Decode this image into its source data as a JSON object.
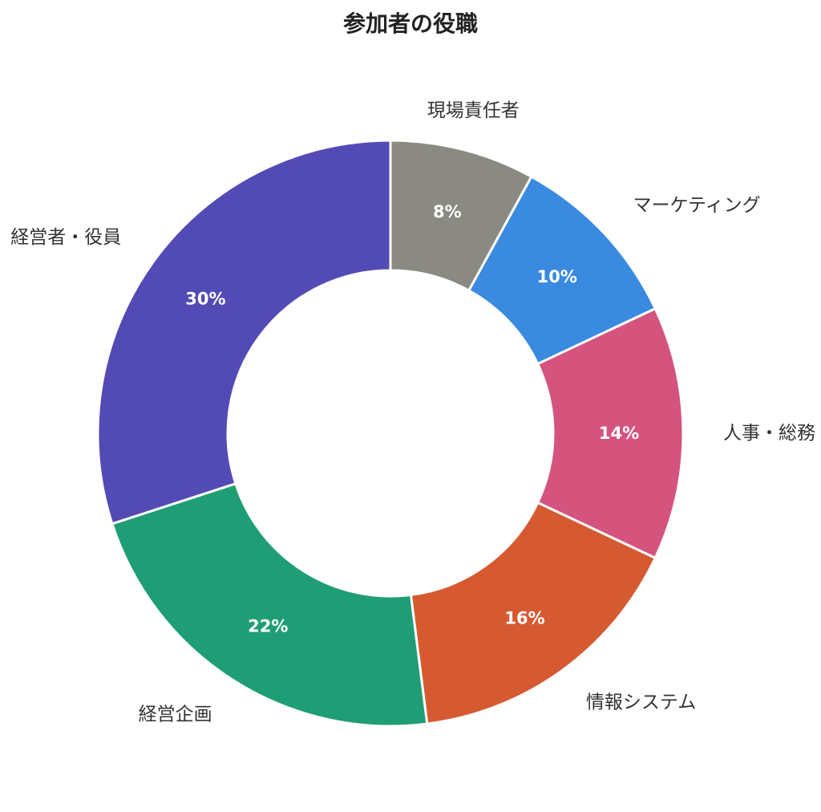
{
  "chart_data": {
    "type": "pie",
    "variant": "donut",
    "title": "参加者の役職",
    "categories": [
      "現場責任者",
      "マーケティング",
      "人事・総務",
      "情報システム",
      "経営企画",
      "経営者・役員"
    ],
    "values": [
      8,
      10,
      14,
      16,
      22,
      30
    ],
    "value_labels": [
      "8%",
      "10%",
      "14%",
      "16%",
      "22%",
      "30%"
    ],
    "unit": "%",
    "start": "12 o'clock",
    "direction": "clockwise",
    "colors": [
      "#8a8a82",
      "#3a8ae0",
      "#d4547e",
      "#d65a31",
      "#1f9e76",
      "#534bb5"
    ],
    "legend": "none (labels outside slices)"
  }
}
